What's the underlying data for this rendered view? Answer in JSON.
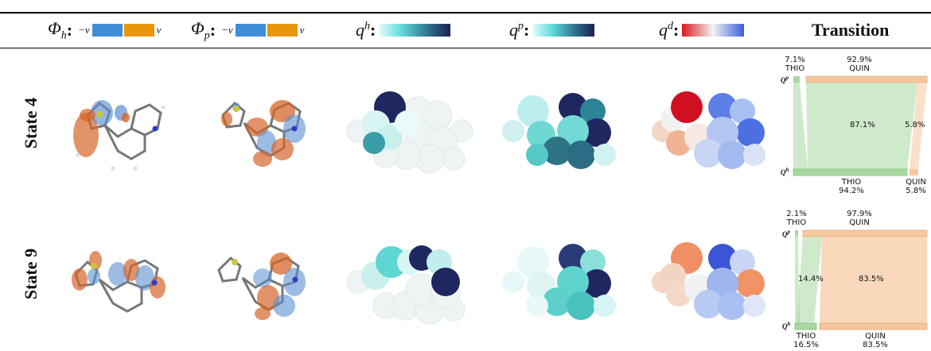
{
  "header": {
    "phi_h": {
      "symbol": "Φ",
      "sub": "h",
      "neg": "−v",
      "pos": "v"
    },
    "phi_p": {
      "symbol": "Φ",
      "sub": "p",
      "neg": "−v",
      "pos": "v"
    },
    "q_h": {
      "symbol": "q",
      "sup": "h"
    },
    "q_p": {
      "symbol": "q",
      "sup": "p"
    },
    "q_d": {
      "symbol": "q",
      "sup": "d"
    },
    "transition": "Transition"
  },
  "colors": {
    "neg_orbital": "#3e8dd6",
    "pos_orbital": "#e8960a",
    "thio_flow": "#a8d8a0",
    "quin_flow": "#f6c79e",
    "diverging_neg": "#d7191c",
    "diverging_pos": "#3b5ddd",
    "sequential_low": "#62e0dc",
    "sequential_high": "#1d2151"
  },
  "rows": [
    {
      "label": "State 4",
      "sankey": {
        "top_left_pct": "7.1%",
        "top_left_name": "THIO",
        "top_right_pct": "92.9%",
        "top_right_name": "QUIN",
        "q_top": "p",
        "q_bottom": "h",
        "flow_main_pct": "87.1%",
        "flow_side_pct": "5.8%",
        "bottom_left_name": "THIO",
        "bottom_left_pct": "94.2%",
        "bottom_right_name": "QUIN",
        "bottom_right_pct": "5.8%"
      }
    },
    {
      "label": "State 9",
      "sankey": {
        "top_left_pct": "2.1%",
        "top_left_name": "THIO",
        "top_right_pct": "97.9%",
        "top_right_name": "QUIN",
        "q_top": "p",
        "q_bottom": "h",
        "flow_main_pct": "14.4%",
        "flow_side_pct": "83.5%",
        "bottom_left_name": "THIO",
        "bottom_left_pct": "16.5%",
        "bottom_right_name": "QUIN",
        "bottom_right_pct": "83.5%"
      }
    }
  ]
}
